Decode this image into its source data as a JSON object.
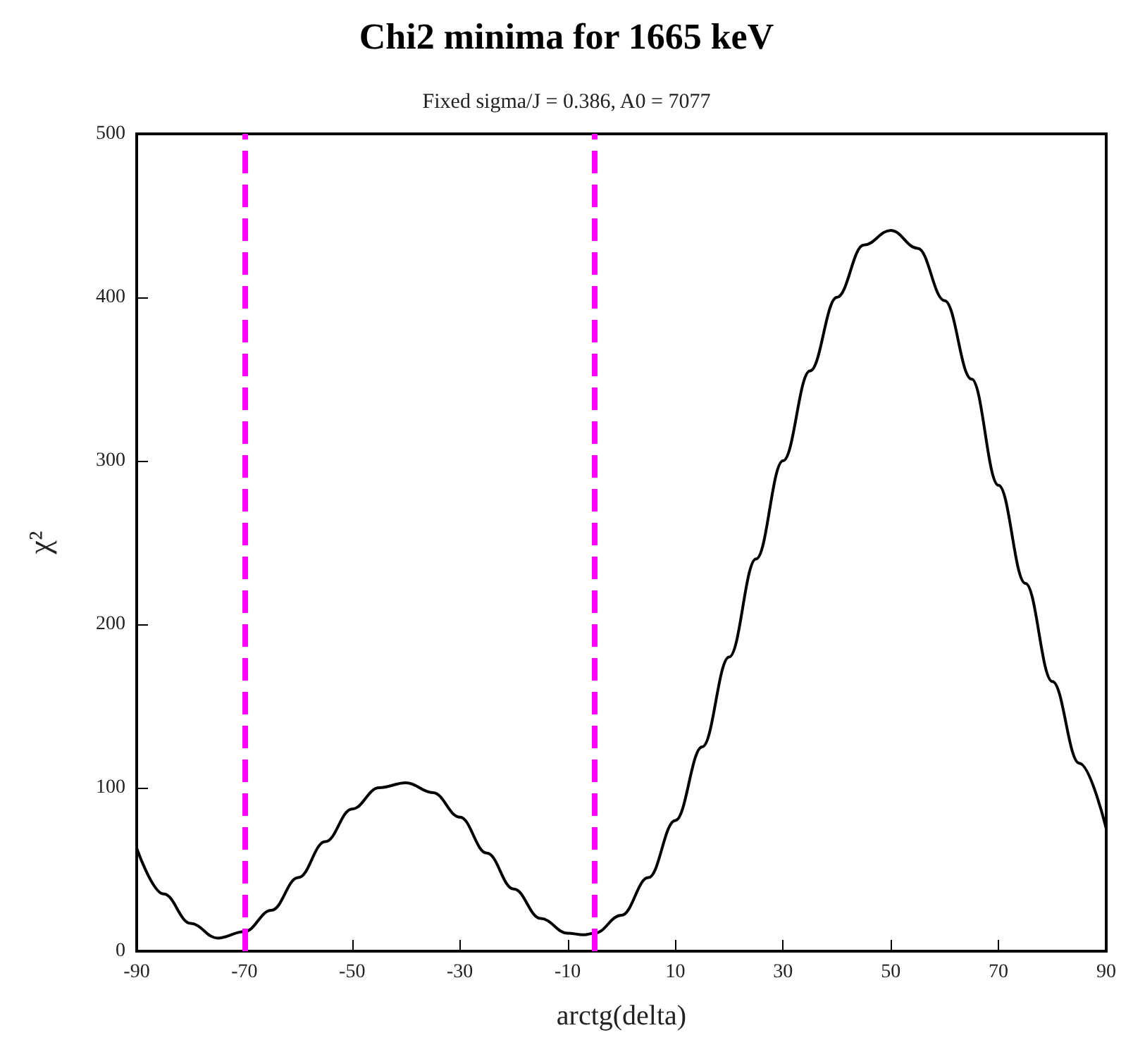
{
  "chart_data": {
    "type": "line",
    "title": "Chi2 minima for 1665 keV",
    "subtitle": "Fixed sigma/J = 0.386, A0 = 7077",
    "xlabel": "arctg(delta)",
    "ylabel": "χ²",
    "x": [
      -90,
      -85,
      -80,
      -75,
      -70,
      -65,
      -60,
      -55,
      -50,
      -45,
      -40,
      -35,
      -30,
      -25,
      -20,
      -15,
      -10,
      -7,
      -5,
      0,
      5,
      10,
      15,
      20,
      25,
      30,
      35,
      40,
      45,
      50,
      55,
      60,
      65,
      70,
      75,
      80,
      85,
      90
    ],
    "series": [
      {
        "color": "#000000",
        "values": [
          63,
          35,
          17,
          8,
          12,
          25,
          45,
          67,
          87,
          100,
          103,
          97,
          82,
          60,
          38,
          20,
          11,
          10,
          11,
          22,
          45,
          80,
          125,
          180,
          240,
          300,
          355,
          400,
          432,
          441,
          430,
          398,
          350,
          285,
          225,
          165,
          115,
          75
        ]
      }
    ],
    "xlim": [
      -90,
      90
    ],
    "xticks": [
      -90,
      -70,
      -50,
      -30,
      -10,
      10,
      30,
      50,
      70,
      90
    ],
    "ylim": [
      0,
      500
    ],
    "yticks": [
      0,
      100,
      200,
      300,
      400,
      500
    ],
    "ref_lines": [
      {
        "axis": "x",
        "value": -70,
        "color": "#ff00ff",
        "line_style": "dashed"
      },
      {
        "axis": "x",
        "value": -5,
        "color": "#ff00ff",
        "line_style": "dashed"
      }
    ],
    "grid": false,
    "marker": "none",
    "line_style": "solid"
  }
}
